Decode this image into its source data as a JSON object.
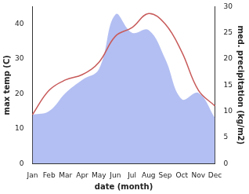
{
  "chart_data": {
    "type": "line",
    "x_label": "date (month)",
    "y_label": "max temp (C)",
    "y2_label": "med. precipitation (kg/m2)",
    "categories": [
      "Jan",
      "Feb",
      "Mar",
      "Apr",
      "May",
      "Jun",
      "Jul",
      "Aug",
      "Sep",
      "Oct",
      "Nov",
      "Dec"
    ],
    "series": [
      {
        "type": "line",
        "color": "#c85a5a",
        "axis": "y",
        "values": [
          14,
          21,
          24,
          25.5,
          29,
          36.5,
          39,
          43,
          40,
          32,
          21,
          16.5
        ]
      },
      {
        "type": "area",
        "color": "#b3bff2",
        "axis": "y2",
        "values": [
          9.3,
          10,
          13.5,
          16,
          18,
          28.5,
          25,
          25.5,
          20,
          12.3,
          13.5,
          8.7
        ]
      }
    ],
    "ylim": [
      0,
      45
    ],
    "yticks": [
      0,
      10,
      20,
      30,
      40
    ],
    "y2lim": [
      0,
      30
    ],
    "y2ticks": [
      0,
      5,
      10,
      15,
      20,
      25,
      30
    ],
    "grid": false
  }
}
